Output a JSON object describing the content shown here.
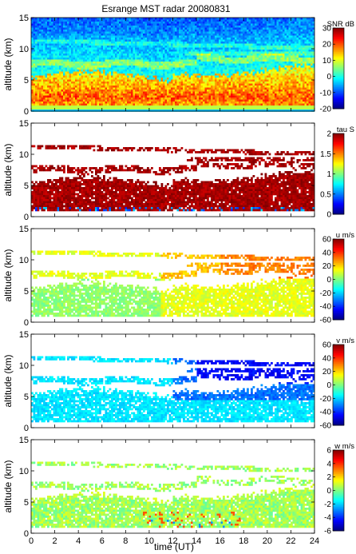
{
  "chart_data": {
    "type": "heatmap",
    "title": "Esrange MST radar 20080831",
    "xlabel": "time (UT)",
    "xlim": [
      0,
      24
    ],
    "xticks": [
      "0",
      "2",
      "4",
      "6",
      "8",
      "10",
      "12",
      "14",
      "16",
      "18",
      "20",
      "22",
      "24"
    ],
    "panels": [
      {
        "key": "snr",
        "ylabel": "altitude (km)",
        "ylim": [
          0,
          15
        ],
        "yticks": [
          "0",
          "5",
          "10",
          "15"
        ],
        "colorbar_label": "SNR dB",
        "clim": [
          -20,
          30
        ],
        "cticks": [
          "-20",
          "-10",
          "0",
          "10",
          "20",
          "30"
        ],
        "field": "snr"
      },
      {
        "key": "tau",
        "ylabel": "altitude (km)",
        "ylim": [
          0,
          15
        ],
        "yticks": [
          "0",
          "5",
          "10",
          "15"
        ],
        "colorbar_label": "tau S",
        "clim": [
          0,
          2
        ],
        "cticks": [
          "0",
          "0.5",
          "1",
          "1.5",
          "2"
        ],
        "field": "tau"
      },
      {
        "key": "u",
        "ylabel": "altitude (km)",
        "ylim": [
          0,
          15
        ],
        "yticks": [
          "0",
          "5",
          "10",
          "15"
        ],
        "colorbar_label": "u m/s",
        "clim": [
          -60,
          60
        ],
        "cticks": [
          "-60",
          "-40",
          "-20",
          "0",
          "20",
          "40",
          "60"
        ],
        "field": "u"
      },
      {
        "key": "v",
        "ylabel": "altitude (km)",
        "ylim": [
          0,
          15
        ],
        "yticks": [
          "0",
          "5",
          "10",
          "15"
        ],
        "colorbar_label": "v m/s",
        "clim": [
          -60,
          60
        ],
        "cticks": [
          "-60",
          "-40",
          "-20",
          "0",
          "20",
          "40",
          "60"
        ],
        "field": "v"
      },
      {
        "key": "w",
        "ylabel": "altitude (km)",
        "ylim": [
          0,
          15
        ],
        "yticks": [
          "0",
          "5",
          "10",
          "15"
        ],
        "colorbar_label": "w m/s",
        "clim": [
          -6,
          6
        ],
        "cticks": [
          "-6",
          "-4",
          "-2",
          "0",
          "2",
          "4",
          "6"
        ],
        "field": "w"
      }
    ]
  }
}
